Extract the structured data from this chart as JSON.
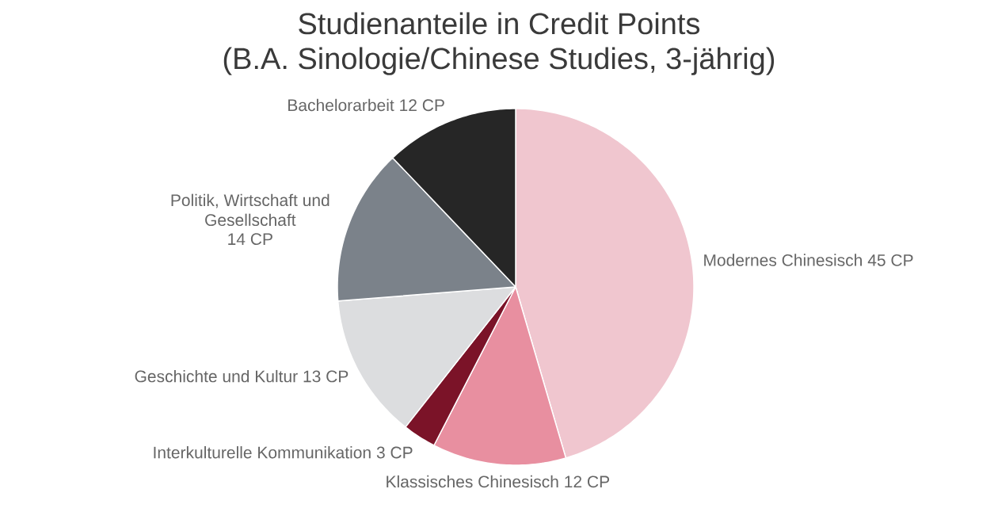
{
  "chart_data": {
    "type": "pie",
    "title": "Studienanteile in Credit Points",
    "subtitle": "(B.A. Sinologie/Chinese Studies, 3-jährig)",
    "categories": [
      "Modernes Chinesisch",
      "Klassisches Chinesisch",
      "Interkulturelle Kommunikation",
      "Geschichte und Kultur",
      "Politik, Wirtschaft und Gesellschaft",
      "Bachelorarbeit"
    ],
    "values": [
      45,
      12,
      3,
      13,
      14,
      12
    ],
    "colors": [
      "#f0c6cf",
      "#e88fa0",
      "#7b1328",
      "#dcdddf",
      "#7b828a",
      "#262626"
    ],
    "value_labels": [
      "45 CP",
      "12 CP",
      "3 CP",
      "13 CP",
      "14 CP",
      "12 CP"
    ]
  }
}
